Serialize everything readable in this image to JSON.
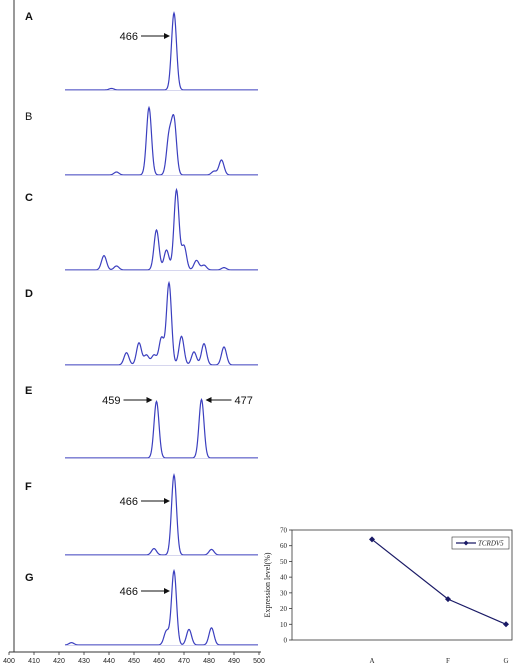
{
  "chart_data": [
    {
      "type": "line",
      "title": "",
      "xlabel": "",
      "ylabel": "",
      "x_ticks": [
        400,
        410,
        420,
        430,
        440,
        450,
        460,
        470,
        480,
        490,
        500
      ],
      "xlim": [
        400,
        500
      ],
      "panels": [
        {
          "label": "A",
          "peaks": [
            [
              466,
              1.0
            ],
            [
              441,
              0.02
            ]
          ],
          "annotations": [
            {
              "text": "466",
              "x": 466,
              "arrow_from": "left"
            }
          ]
        },
        {
          "label": "B",
          "peaks": [
            [
              456,
              0.9
            ],
            [
              464,
              0.5
            ],
            [
              466,
              0.72
            ],
            [
              485,
              0.2
            ],
            [
              443,
              0.04
            ],
            [
              482,
              0.05
            ]
          ],
          "annotations": []
        },
        {
          "label": "C",
          "peaks": [
            [
              438,
              0.18
            ],
            [
              443,
              0.05
            ],
            [
              459,
              0.5
            ],
            [
              463,
              0.25
            ],
            [
              467,
              1.0
            ],
            [
              470,
              0.3
            ],
            [
              475,
              0.12
            ],
            [
              478,
              0.06
            ],
            [
              486,
              0.03
            ]
          ],
          "annotations": []
        },
        {
          "label": "D",
          "peaks": [
            [
              447,
              0.15
            ],
            [
              452,
              0.27
            ],
            [
              455,
              0.12
            ],
            [
              458,
              0.12
            ],
            [
              461,
              0.33
            ],
            [
              464,
              1.0
            ],
            [
              469,
              0.35
            ],
            [
              474,
              0.16
            ],
            [
              478,
              0.26
            ],
            [
              486,
              0.22
            ]
          ],
          "annotations": []
        },
        {
          "label": "E",
          "peaks": [
            [
              459,
              0.87
            ],
            [
              477,
              0.9
            ]
          ],
          "annotations": [
            {
              "text": "459",
              "x": 459,
              "arrow_from": "left"
            },
            {
              "text": "477",
              "x": 477,
              "arrow_from": "right"
            }
          ]
        },
        {
          "label": "F",
          "peaks": [
            [
              466,
              1.0
            ],
            [
              458,
              0.08
            ],
            [
              481,
              0.07
            ]
          ],
          "annotations": [
            {
              "text": "466",
              "x": 466,
              "arrow_from": "left"
            }
          ]
        },
        {
          "label": "G",
          "peaks": [
            [
              466,
              0.95
            ],
            [
              463,
              0.18
            ],
            [
              472,
              0.2
            ],
            [
              481,
              0.22
            ],
            [
              425,
              0.03
            ]
          ],
          "annotations": [
            {
              "text": "466",
              "x": 466,
              "arrow_from": "left"
            }
          ]
        }
      ]
    },
    {
      "type": "line",
      "title": "",
      "xlabel": "",
      "ylabel": "Expression level(%)",
      "categories": [
        "A",
        "F",
        "G"
      ],
      "series": [
        {
          "name": "TCRDV5",
          "values": [
            64,
            26,
            10
          ]
        }
      ],
      "ylim": [
        0,
        70
      ],
      "y_ticks": [
        0,
        10,
        20,
        30,
        40,
        50,
        60,
        70
      ],
      "legend": "top-right"
    }
  ],
  "colors": {
    "trace": "#3b3fbf",
    "baseline": "#c8c8e8",
    "marker": "#1a1a66",
    "axis": "#333333"
  }
}
